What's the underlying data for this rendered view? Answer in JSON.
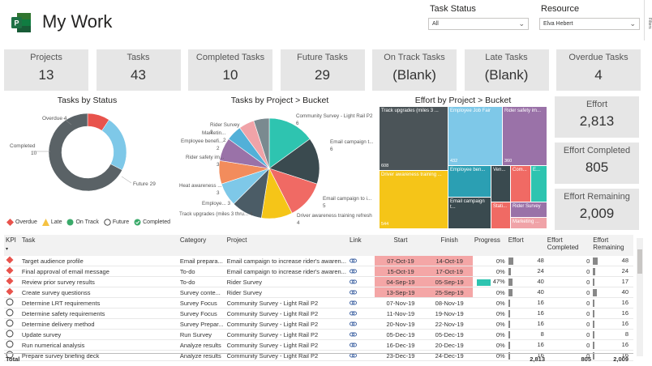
{
  "header": {
    "title": "My Work"
  },
  "filters": {
    "task_status": {
      "label": "Task Status",
      "value": "All"
    },
    "resource": {
      "label": "Resource",
      "value": "Elva Hebert"
    },
    "side_label": "Filters"
  },
  "kpis": [
    {
      "label": "Projects",
      "value": "13"
    },
    {
      "label": "Tasks",
      "value": "43"
    },
    {
      "label": "Completed Tasks",
      "value": "10"
    },
    {
      "label": "Future Tasks",
      "value": "29"
    },
    {
      "label": "On Track Tasks",
      "value": "(Blank)"
    },
    {
      "label": "Late Tasks",
      "value": "(Blank)"
    },
    {
      "label": "Overdue Tasks",
      "value": "4"
    }
  ],
  "effort_cards": [
    {
      "label": "Effort",
      "value": "2,813"
    },
    {
      "label": "Effort Completed",
      "value": "805"
    },
    {
      "label": "Effort Remaining",
      "value": "2,009"
    }
  ],
  "donut": {
    "title": "Tasks by Status",
    "slices": [
      {
        "name": "Overdue",
        "value": 4,
        "color": "#e8534c"
      },
      {
        "name": "Completed",
        "value": 10,
        "color": "#7ec8e8"
      },
      {
        "name": "Future",
        "value": 29,
        "color": "#5a6266"
      }
    ],
    "legend": [
      {
        "name": "Overdue",
        "color": "#e8534c",
        "shape": "diamond"
      },
      {
        "name": "Late",
        "color": "#f5c242",
        "shape": "triangle"
      },
      {
        "name": "On Track",
        "color": "#3aaa6a",
        "shape": "circle"
      },
      {
        "name": "Future",
        "color": "#ffffff",
        "shape": "circle-outline"
      },
      {
        "name": "Completed",
        "color": "#3aaa6a",
        "shape": "check"
      }
    ]
  },
  "chart_data": {
    "type": "pie",
    "title": "Tasks by Project > Bucket",
    "slices": [
      {
        "label": "Community Survey - Light Rail P2",
        "value": 6,
        "color": "#2ec4b0"
      },
      {
        "label": "Email campaign t...",
        "value": 6,
        "color": "#3a4a4f"
      },
      {
        "label": "Email campaign to i...",
        "value": 5,
        "color": "#f06a64"
      },
      {
        "label": "Driver awareness training refresh",
        "value": 4,
        "color": "#f5c518"
      },
      {
        "label": "Track upgrades (miles 3 thru...",
        "value": 4,
        "color": "#4b5c66"
      },
      {
        "label": "Employe...",
        "value": 3,
        "color": "#7ec8e8"
      },
      {
        "label": "Heat awareness ...",
        "value": 3,
        "color": "#f28c5c"
      },
      {
        "label": "Rider safety im...",
        "value": 3,
        "color": "#9a72a8"
      },
      {
        "label": "Employee benefi...",
        "value": 2,
        "color": "#52b0d8"
      },
      {
        "label": "Marketin...",
        "value": 2,
        "color": "#f0a3a8"
      },
      {
        "label": "Rider Survey",
        "value": 2,
        "color": "#7a8a90"
      }
    ]
  },
  "treemap": {
    "title": "Effort by Project > Bucket",
    "tiles": [
      {
        "label": "Track upgrades (miles 3 ...",
        "value": "608"
      },
      {
        "label": "Employee Job Fair",
        "value": "432"
      },
      {
        "label": "Rider safety im...",
        "value": "360"
      },
      {
        "label": "Driver awareness training ...",
        "value": "544"
      },
      {
        "label": "Employee ben...",
        "value": ""
      },
      {
        "label": "Ven...",
        "value": ""
      },
      {
        "label": "Com...",
        "value": ""
      },
      {
        "label": "E...",
        "value": ""
      },
      {
        "label": "Email campaign t...",
        "value": ""
      },
      {
        "label": "Stati...",
        "value": ""
      },
      {
        "label": "Rider Survey",
        "value": ""
      },
      {
        "label": "Marketing ...",
        "value": ""
      }
    ]
  },
  "table": {
    "headers": [
      "KPI",
      "Task",
      "Category",
      "Project",
      "Link",
      "Start",
      "Finish",
      "Progress",
      "Effort",
      "Effort Completed",
      "Effort Remaining"
    ],
    "rows": [
      {
        "kpi": "overdue",
        "task": "Target audience profile",
        "category": "Email prepara...",
        "project": "Email campaign to increase rider's awaren...",
        "start": "07-Oct-19",
        "finish": "14-Oct-19",
        "progress": "0%",
        "effort": "48",
        "effort_completed": "0",
        "effort_remaining": "48",
        "late": true,
        "pct": 0
      },
      {
        "kpi": "overdue",
        "task": "Final approval of email message",
        "category": "To-do",
        "project": "Email campaign to increase rider's awaren...",
        "start": "15-Oct-19",
        "finish": "17-Oct-19",
        "progress": "0%",
        "effort": "24",
        "effort_completed": "0",
        "effort_remaining": "24",
        "late": true,
        "pct": 0
      },
      {
        "kpi": "overdue",
        "task": "Review prior survey results",
        "category": "To-do",
        "project": "Rider Survey",
        "start": "04-Sep-19",
        "finish": "05-Sep-19",
        "progress": "47%",
        "effort": "40",
        "effort_completed": "0",
        "effort_remaining": "17",
        "late": true,
        "pct": 47
      },
      {
        "kpi": "overdue",
        "task": "Create survey questionss",
        "category": "Survey conte...",
        "project": "Rider Survey",
        "start": "13-Sep-19",
        "finish": "25-Sep-19",
        "progress": "0%",
        "effort": "40",
        "effort_completed": "0",
        "effort_remaining": "40",
        "late": true,
        "pct": 0
      },
      {
        "kpi": "future",
        "task": "Determine LRT requirements",
        "category": "Survey Focus",
        "project": "Community Survey - Light Rail P2",
        "start": "07-Nov-19",
        "finish": "08-Nov-19",
        "progress": "0%",
        "effort": "16",
        "effort_completed": "0",
        "effort_remaining": "16",
        "late": false,
        "pct": 0
      },
      {
        "kpi": "future",
        "task": "Determine safety requirements",
        "category": "Survey Focus",
        "project": "Community Survey - Light Rail P2",
        "start": "11-Nov-19",
        "finish": "19-Nov-19",
        "progress": "0%",
        "effort": "16",
        "effort_completed": "0",
        "effort_remaining": "16",
        "late": false,
        "pct": 0
      },
      {
        "kpi": "future",
        "task": "Determine delivery method",
        "category": "Survey Prepar...",
        "project": "Community Survey - Light Rail P2",
        "start": "20-Nov-19",
        "finish": "22-Nov-19",
        "progress": "0%",
        "effort": "16",
        "effort_completed": "0",
        "effort_remaining": "16",
        "late": false,
        "pct": 0
      },
      {
        "kpi": "future",
        "task": "Update survey",
        "category": "Run Survey",
        "project": "Community Survey - Light Rail P2",
        "start": "05-Dec-19",
        "finish": "05-Dec-19",
        "progress": "0%",
        "effort": "8",
        "effort_completed": "0",
        "effort_remaining": "8",
        "late": false,
        "pct": 0
      },
      {
        "kpi": "future",
        "task": "Run numerical analysis",
        "category": "Analyze results",
        "project": "Community Survey - Light Rail P2",
        "start": "16-Dec-19",
        "finish": "20-Dec-19",
        "progress": "0%",
        "effort": "16",
        "effort_completed": "0",
        "effort_remaining": "16",
        "late": false,
        "pct": 0
      },
      {
        "kpi": "future",
        "task": "Prepare survey briefing deck",
        "category": "Analyze results",
        "project": "Community Survey - Light Rail P2",
        "start": "23-Dec-19",
        "finish": "24-Dec-19",
        "progress": "0%",
        "effort": "16",
        "effort_completed": "0",
        "effort_remaining": "16",
        "late": false,
        "pct": 0
      }
    ],
    "totals": {
      "label": "Total",
      "effort": "2,813",
      "effort_completed": "805",
      "effort_remaining": "2,009"
    }
  }
}
